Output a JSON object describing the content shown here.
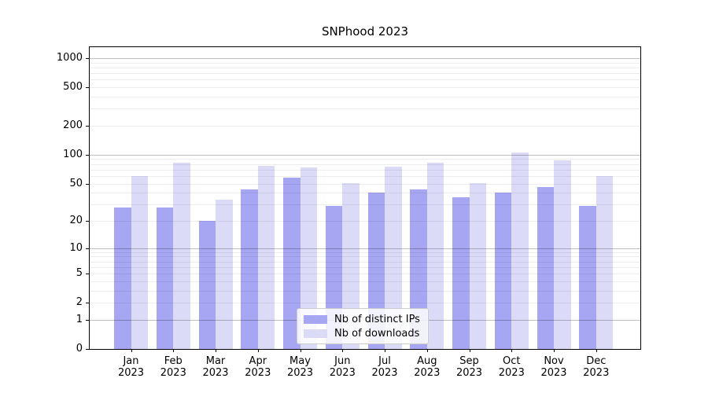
{
  "chart_data": {
    "type": "bar",
    "title": "SNPhood 2023",
    "categories": [
      "Jan",
      "Feb",
      "Mar",
      "Apr",
      "May",
      "Jun",
      "Jul",
      "Aug",
      "Sep",
      "Oct",
      "Nov",
      "Dec"
    ],
    "year": "2023",
    "series": [
      {
        "name": "Nb of distinct IPs",
        "color": "#a6a6f2",
        "values": [
          28,
          28,
          20,
          43,
          58,
          29,
          40,
          43,
          36,
          40,
          46,
          29
        ]
      },
      {
        "name": "Nb of downloads",
        "color": "#dbdbf8",
        "values": [
          60,
          83,
          34,
          76,
          74,
          50,
          75,
          83,
          50,
          105,
          87,
          60
        ]
      }
    ],
    "y_scale": "log1p",
    "y_ticks": [
      0,
      1,
      2,
      5,
      10,
      20,
      50,
      100,
      200,
      500,
      1000
    ],
    "y_max": 1300,
    "major_gridlines": [
      1,
      10,
      100,
      1000
    ],
    "grid": true,
    "legend_position": "lower center",
    "xlabel": "",
    "ylabel": ""
  }
}
